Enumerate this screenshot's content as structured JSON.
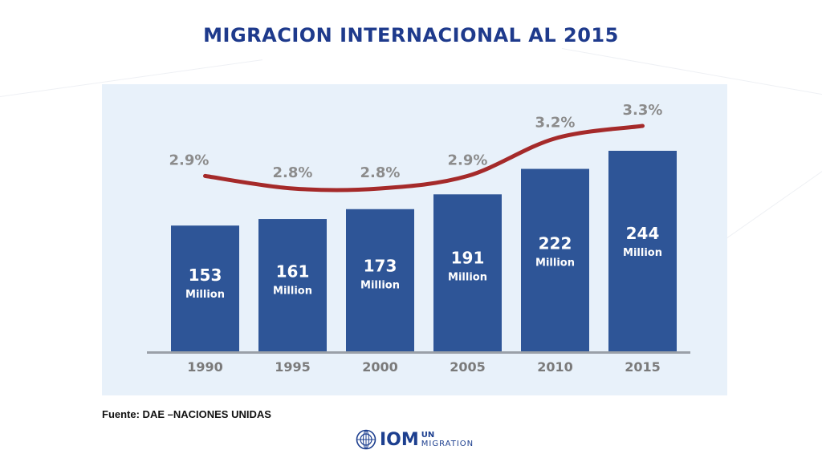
{
  "title": "MIGRACION INTERNACIONAL AL 2015",
  "source": "Fuente: DAE –NACIONES UNIDAS",
  "logo": {
    "icon": "un-emblem-icon",
    "name": "IOM",
    "line1": "UN",
    "line2": "MIGRATION"
  },
  "colors": {
    "title": "#1e3a8c",
    "bar": "#2e5597",
    "line": "#a52a2a",
    "panel": "#e8f1fa",
    "pct_label": "#8c8c8c",
    "year_label": "#7a7a7a"
  },
  "chart_data": {
    "type": "bar",
    "title": "",
    "xlabel": "",
    "ylabel": "",
    "categories": [
      "1990",
      "1995",
      "2000",
      "2005",
      "2010",
      "2015"
    ],
    "ylim": [
      0,
      244
    ],
    "series": [
      {
        "type": "bar",
        "values": [
          153,
          161,
          173,
          191,
          222,
          244
        ],
        "value_labels": [
          "153",
          "161",
          "173",
          "191",
          "222",
          "244"
        ],
        "unit_label": "Million"
      },
      {
        "type": "line",
        "values": [
          2.9,
          2.8,
          2.8,
          2.9,
          3.2,
          3.3
        ],
        "value_labels": [
          "2.9%",
          "2.8%",
          "2.8%",
          "2.9%",
          "3.2%",
          "3.3%"
        ]
      }
    ],
    "grid": false,
    "legend": "none"
  }
}
